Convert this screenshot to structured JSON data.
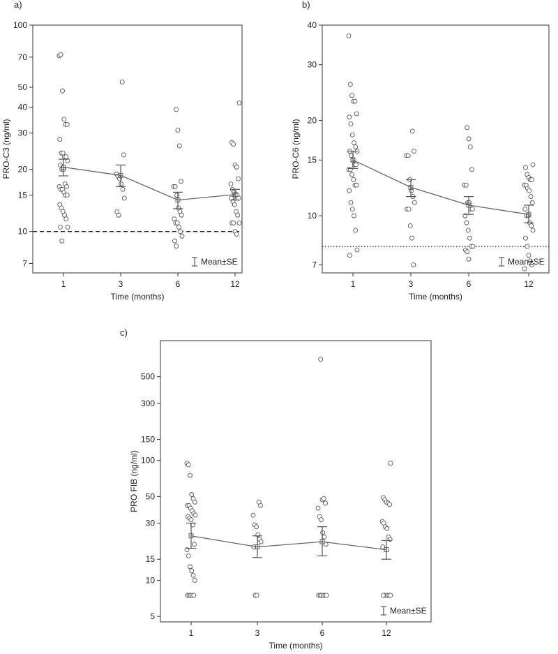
{
  "chart_data": [
    {
      "type": "scatter",
      "panel_label": "a)",
      "xlabel": "Time (months)",
      "ylabel": "PRO-C3 (ng/ml)",
      "yscale": "log",
      "ylim": [
        6.3,
        100
      ],
      "yticks": [
        7,
        10,
        15,
        20,
        30,
        40,
        50,
        70,
        100
      ],
      "categories": [
        "1",
        "3",
        "6",
        "12"
      ],
      "reference_line": {
        "value": 10,
        "style": "dashed"
      },
      "legend": "Mean±SE",
      "points": [
        [
          71,
          72,
          48,
          35,
          33,
          33,
          28,
          24,
          24,
          23,
          23,
          22,
          21,
          20,
          20,
          17,
          16.5,
          16.5,
          16,
          16,
          15.5,
          15,
          15,
          13.5,
          13,
          12.5,
          12,
          11.5,
          10.5,
          10.5,
          9
        ],
        [
          53,
          23.5,
          19,
          18.5,
          18,
          17,
          16,
          14.5,
          12.5,
          12
        ],
        [
          39,
          31,
          26,
          17.5,
          16.5,
          16.5,
          15,
          13,
          12.5,
          12,
          11.5,
          11,
          11,
          10.5,
          10,
          9.5,
          9,
          8.5
        ],
        [
          42,
          27,
          26.5,
          21,
          20.5,
          18,
          17,
          16,
          15.5,
          15,
          15,
          14.5,
          14.5,
          14,
          13.5,
          12.5,
          12,
          11,
          11,
          11,
          10,
          9.7
        ]
      ],
      "means": [
        20.5,
        18.7,
        14.2,
        15.1
      ],
      "se_upper": [
        22.4,
        21.0,
        15.5,
        16.0
      ],
      "se_lower": [
        18.6,
        16.5,
        12.9,
        14.2
      ]
    },
    {
      "type": "scatter",
      "panel_label": "b)",
      "xlabel": "Time (months)",
      "ylabel": "PRO-C6 (ng/ml)",
      "yscale": "log",
      "ylim": [
        6.6,
        40
      ],
      "yticks": [
        7,
        10,
        15,
        20,
        30,
        40
      ],
      "categories": [
        "1",
        "3",
        "6",
        "12"
      ],
      "reference_line": {
        "value": 8,
        "style": "dotted"
      },
      "legend": "Mean±SE",
      "points": [
        [
          37,
          26,
          24,
          23,
          23,
          21,
          20.5,
          19.5,
          18,
          17,
          16.5,
          16,
          16,
          15.5,
          15,
          14.5,
          14.5,
          14,
          14,
          13.5,
          13,
          12.5,
          12.5,
          12,
          11,
          10.5,
          10,
          9,
          7.8,
          7.5
        ],
        [
          18.5,
          16,
          15.5,
          15.5,
          13,
          12,
          11.5,
          11,
          10.5,
          10.5,
          9.3,
          8.5,
          7
        ],
        [
          19,
          17.5,
          16.5,
          14,
          12.5,
          12.5,
          11,
          11,
          10.5,
          10.5,
          10,
          9.5,
          9,
          8.5,
          8,
          8,
          7.8,
          7.7,
          7.3
        ],
        [
          14.5,
          14.2,
          13.5,
          13.2,
          13,
          13,
          12.5,
          12.5,
          12.2,
          12,
          11.5,
          11,
          10.5,
          10,
          10,
          9.5,
          9.3,
          9,
          8.5,
          8,
          7.5,
          7.2,
          7.0,
          6.8
        ]
      ],
      "means": [
        15.0,
        12.3,
        10.8,
        10.1
      ],
      "se_upper": [
        16.0,
        13.0,
        11.5,
        10.8
      ],
      "se_lower": [
        14.1,
        11.5,
        10.1,
        9.5
      ]
    },
    {
      "type": "scatter",
      "panel_label": "c)",
      "xlabel": "Time (months)",
      "ylabel": "PRO FIB (ng/ml)",
      "yscale": "log",
      "ylim": [
        4.5,
        1000
      ],
      "yticks": [
        5,
        10,
        15,
        30,
        50,
        100,
        150,
        300,
        500
      ],
      "categories": [
        "1",
        "3",
        "6",
        "12"
      ],
      "legend": "Mean±SE",
      "points": [
        [
          95,
          92,
          75,
          52,
          48,
          45,
          42,
          42,
          40,
          38,
          36,
          35,
          34,
          33,
          32,
          29,
          20,
          18,
          16,
          13,
          12,
          11,
          10,
          7.5,
          7.5,
          7.5,
          7.5,
          7.5
        ],
        [
          45,
          42,
          35,
          29,
          28,
          24,
          22,
          21,
          19,
          7.5,
          7.5
        ],
        [
          700,
          47,
          48,
          44,
          40,
          34,
          32,
          25,
          23,
          20,
          7.5,
          7.5,
          7.5,
          7.5,
          7.5,
          7.5
        ],
        [
          95,
          49,
          47,
          45,
          44,
          43,
          31,
          30,
          28,
          27,
          23,
          22,
          19,
          7.5,
          7.5,
          7.5,
          7.5,
          7.5,
          7.5
        ]
      ],
      "means": [
        23.5,
        19.0,
        21.0,
        18.0
      ],
      "se_upper": [
        30.0,
        23.5,
        28.0,
        21.5
      ],
      "se_lower": [
        18.5,
        15.5,
        16.0,
        15.0
      ]
    }
  ]
}
